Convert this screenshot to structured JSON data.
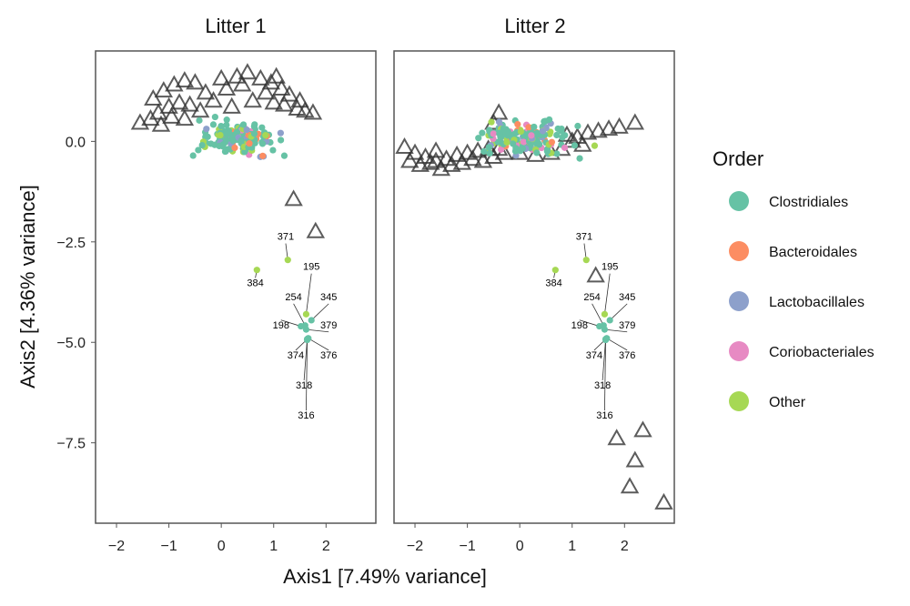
{
  "chart_data": {
    "type": "scatter",
    "title": "",
    "xlabel": "Axis1 [7.49% variance]",
    "ylabel": "Axis2 [4.36% variance]",
    "xlim": [
      -2.4,
      2.95
    ],
    "ylim": [
      -9.5,
      2.25
    ],
    "x_ticks": [
      -2,
      -1,
      0,
      1,
      2
    ],
    "y_ticks": [
      0.0,
      -2.5,
      -5.0,
      -7.5
    ],
    "x_tick_labels": [
      "−2",
      "−1",
      "0",
      "1",
      "2"
    ],
    "y_tick_labels": [
      "0.0",
      "−2.5",
      "−5.0",
      "−7.5"
    ],
    "legend": {
      "title": "Order",
      "position": "right",
      "entries": [
        {
          "label": "Clostridiales",
          "color": "#66c2a5"
        },
        {
          "label": "Bacteroidales",
          "color": "#fc8d62"
        },
        {
          "label": "Lactobacillales",
          "color": "#8da0cb"
        },
        {
          "label": "Coriobacteriales",
          "color": "#e78ac3"
        },
        {
          "label": "Other",
          "color": "#a6d854"
        }
      ]
    },
    "labeled_taxa": [
      {
        "label": "371",
        "x": 1.27,
        "y": -2.95,
        "order": "Other",
        "lx": 1.23,
        "ly": -2.45
      },
      {
        "label": "384",
        "x": 0.68,
        "y": -3.2,
        "order": "Other",
        "lx": 0.65,
        "ly": -3.6
      },
      {
        "label": "195",
        "x": 1.62,
        "y": -4.3,
        "order": "Other",
        "lx": 1.72,
        "ly": -3.2
      },
      {
        "label": "254",
        "x": 1.6,
        "y": -4.58,
        "order": "Clostridiales",
        "lx": 1.38,
        "ly": -3.95
      },
      {
        "label": "345",
        "x": 1.72,
        "y": -4.45,
        "order": "Clostridiales",
        "lx": 2.05,
        "ly": -3.95
      },
      {
        "label": "198",
        "x": 1.52,
        "y": -4.6,
        "order": "Clostridiales",
        "lx": 1.14,
        "ly": -4.65
      },
      {
        "label": "379",
        "x": 1.62,
        "y": -4.68,
        "order": "Clostridiales",
        "lx": 2.05,
        "ly": -4.65
      },
      {
        "label": "374",
        "x": 1.66,
        "y": -4.9,
        "order": "Clostridiales",
        "lx": 1.42,
        "ly": -5.4
      },
      {
        "label": "376",
        "x": 1.66,
        "y": -4.9,
        "order": "Clostridiales",
        "lx": 2.05,
        "ly": -5.4
      },
      {
        "label": "318",
        "x": 1.64,
        "y": -4.92,
        "order": "Clostridiales",
        "lx": 1.58,
        "ly": -6.15
      },
      {
        "label": "316",
        "x": 1.64,
        "y": -4.94,
        "order": "Clostridiales",
        "lx": 1.62,
        "ly": -6.9
      }
    ],
    "panels": [
      {
        "name": "Litter 1",
        "samples": [
          [
            -1.55,
            0.45
          ],
          [
            1.38,
            -1.45
          ],
          [
            1.8,
            -2.25
          ],
          [
            -1.3,
            1.05
          ],
          [
            -1.1,
            1.25
          ],
          [
            -0.9,
            1.4
          ],
          [
            -0.7,
            1.5
          ],
          [
            -0.5,
            1.45
          ],
          [
            -1.2,
            0.7
          ],
          [
            -1.0,
            0.85
          ],
          [
            -0.8,
            0.95
          ],
          [
            -0.6,
            0.9
          ],
          [
            -0.3,
            1.2
          ],
          [
            0.0,
            1.55
          ],
          [
            0.3,
            1.6
          ],
          [
            0.5,
            1.7
          ],
          [
            0.75,
            1.55
          ],
          [
            0.95,
            1.45
          ],
          [
            1.05,
            1.6
          ],
          [
            1.15,
            1.3
          ],
          [
            1.3,
            1.15
          ],
          [
            1.45,
            0.8
          ],
          [
            1.6,
            0.75
          ],
          [
            1.75,
            0.7
          ],
          [
            -0.4,
            0.75
          ],
          [
            0.1,
            1.3
          ],
          [
            0.4,
            1.4
          ],
          [
            1.2,
            0.9
          ],
          [
            -1.35,
            0.55
          ],
          [
            -0.95,
            0.6
          ],
          [
            1.0,
            0.95
          ],
          [
            0.85,
            1.2
          ],
          [
            0.2,
            0.85
          ],
          [
            -0.15,
            1.0
          ],
          [
            1.5,
            1.0
          ],
          [
            0.6,
            1.0
          ],
          [
            -1.15,
            0.4
          ],
          [
            -0.7,
            0.55
          ]
        ],
        "taxa_cluster": {
          "cx": 0.3,
          "cy": 0.05,
          "sx": 0.35,
          "sy": 0.2,
          "n": 160
        }
      },
      {
        "name": "Litter 2",
        "samples": [
          [
            -2.2,
            -0.15
          ],
          [
            -2.0,
            -0.3
          ],
          [
            -1.8,
            -0.4
          ],
          [
            -1.6,
            -0.5
          ],
          [
            -1.4,
            -0.45
          ],
          [
            -1.2,
            -0.35
          ],
          [
            -1.0,
            -0.3
          ],
          [
            -0.8,
            -0.25
          ],
          [
            -0.6,
            -0.2
          ],
          [
            -0.4,
            -0.2
          ],
          [
            -2.1,
            -0.5
          ],
          [
            -1.9,
            -0.6
          ],
          [
            -1.7,
            -0.55
          ],
          [
            -1.5,
            -0.7
          ],
          [
            -1.3,
            -0.6
          ],
          [
            -1.1,
            -0.55
          ],
          [
            -0.9,
            -0.45
          ],
          [
            -0.7,
            -0.5
          ],
          [
            -0.5,
            -0.4
          ],
          [
            0.0,
            -0.3
          ],
          [
            0.3,
            -0.35
          ],
          [
            0.6,
            -0.3
          ],
          [
            0.8,
            -0.2
          ],
          [
            1.1,
            0.1
          ],
          [
            1.3,
            0.2
          ],
          [
            1.5,
            0.25
          ],
          [
            1.7,
            0.3
          ],
          [
            1.9,
            0.35
          ],
          [
            2.2,
            0.45
          ],
          [
            1.0,
            0.0
          ],
          [
            1.2,
            -0.1
          ],
          [
            0.9,
            0.15
          ],
          [
            -0.3,
            -0.3
          ],
          [
            -1.6,
            -0.25
          ],
          [
            -0.5,
            0.45
          ],
          [
            -0.4,
            0.7
          ],
          [
            1.45,
            -3.35
          ],
          [
            2.35,
            -7.2
          ],
          [
            1.85,
            -7.4
          ],
          [
            2.2,
            -7.95
          ],
          [
            2.1,
            -8.6
          ],
          [
            2.75,
            -9.0
          ]
        ],
        "taxa_cluster": {
          "cx": 0.15,
          "cy": 0.1,
          "sx": 0.4,
          "sy": 0.18,
          "n": 170
        }
      }
    ]
  }
}
